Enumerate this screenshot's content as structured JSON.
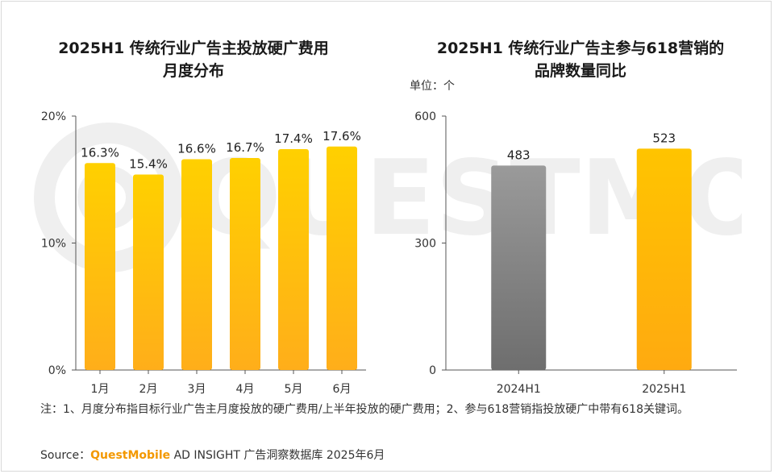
{
  "chart_data": [
    {
      "type": "bar",
      "title": "2025H1 传统行业广告主投放硬广费用月度分布",
      "title_lines": [
        "2025H1 传统行业广告主投放硬广费用",
        "月度分布"
      ],
      "categories": [
        "1月",
        "2月",
        "3月",
        "4月",
        "5月",
        "6月"
      ],
      "values": [
        16.3,
        15.4,
        16.6,
        16.7,
        17.4,
        17.6
      ],
      "data_labels": [
        "16.3%",
        "15.4%",
        "16.6%",
        "16.7%",
        "17.4%",
        "17.6%"
      ],
      "ylim": [
        0,
        20
      ],
      "yticks": [
        0,
        10,
        20
      ],
      "ytick_labels": [
        "0%",
        "10%",
        "20%"
      ],
      "grid": false,
      "colors": {
        "bar_top": "#ffd000",
        "bar_bottom": "#ffb21a"
      }
    },
    {
      "type": "bar",
      "title": "2025H1 传统行业广告主参与618营销的品牌数量同比",
      "title_lines": [
        "2025H1 传统行业广告主参与618营销的",
        "品牌数量同比"
      ],
      "unit": "单位：个",
      "categories": [
        "2024H1",
        "2025H1"
      ],
      "values": [
        483,
        523
      ],
      "data_labels": [
        "483",
        "523"
      ],
      "ylim": [
        0,
        600
      ],
      "yticks": [
        0,
        300,
        600
      ],
      "ytick_labels": [
        "0",
        "300",
        "600"
      ],
      "grid": false,
      "colors": {
        "bar_2024": "#808080",
        "bar_2025": "#ffc000"
      }
    }
  ],
  "watermark": "QUESTMOBILE",
  "note": "注：1、月度分布指目标行业广告主月度投放的硬广费用/上半年投放的硬广费用；2、参与618营销指投放硬广中带有618关键词。",
  "source": {
    "prefix": "Source：",
    "brand": "QuestMobile",
    "suffix": " AD INSIGHT 广告洞察数据库 2025年6月"
  }
}
